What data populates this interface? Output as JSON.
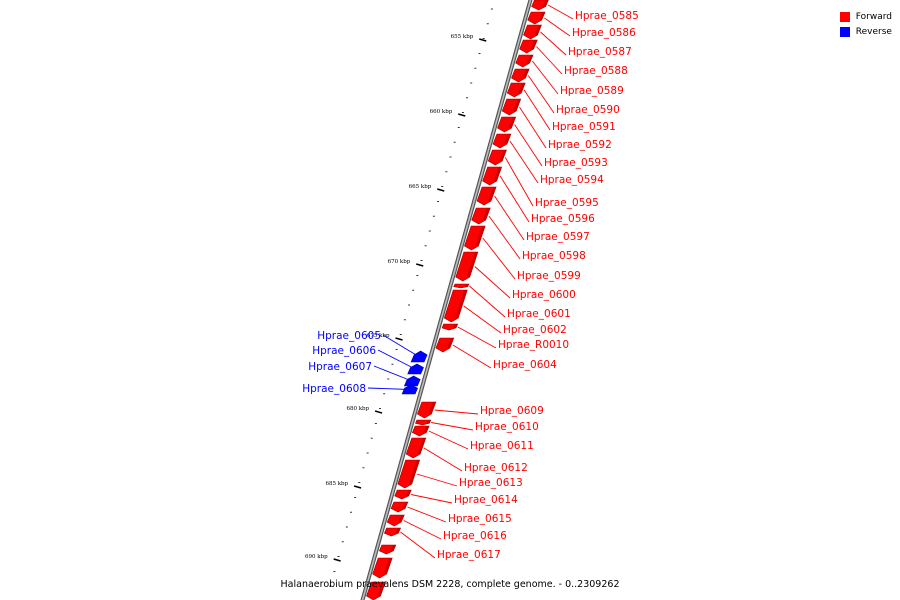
{
  "caption": "Halanaerobium praevalens DSM 2228, complete genome. - 0..2309262",
  "legend": {
    "forward_label": "Forward",
    "reverse_label": "Reverse",
    "forward_color": "#ff0000",
    "reverse_color": "#0000ff"
  },
  "ticks": [
    "655 kbp",
    "660 kbp",
    "665 kbp",
    "670 kbp",
    "675 kbp",
    "680 kbp",
    "685 kbp",
    "690 kbp"
  ],
  "genes": [
    {
      "label": "Hprae_0585",
      "strand": "forward"
    },
    {
      "label": "Hprae_0586",
      "strand": "forward"
    },
    {
      "label": "Hprae_0587",
      "strand": "forward"
    },
    {
      "label": "Hprae_0588",
      "strand": "forward"
    },
    {
      "label": "Hprae_0589",
      "strand": "forward"
    },
    {
      "label": "Hprae_0590",
      "strand": "forward"
    },
    {
      "label": "Hprae_0591",
      "strand": "forward"
    },
    {
      "label": "Hprae_0592",
      "strand": "forward"
    },
    {
      "label": "Hprae_0593",
      "strand": "forward"
    },
    {
      "label": "Hprae_0594",
      "strand": "forward"
    },
    {
      "label": "Hprae_0595",
      "strand": "forward"
    },
    {
      "label": "Hprae_0596",
      "strand": "forward"
    },
    {
      "label": "Hprae_0597",
      "strand": "forward"
    },
    {
      "label": "Hprae_0598",
      "strand": "forward"
    },
    {
      "label": "Hprae_0599",
      "strand": "forward"
    },
    {
      "label": "Hprae_0600",
      "strand": "forward"
    },
    {
      "label": "Hprae_0601",
      "strand": "forward"
    },
    {
      "label": "Hprae_0602",
      "strand": "forward"
    },
    {
      "label": "Hprae_R0010",
      "strand": "forward"
    },
    {
      "label": "Hprae_0604",
      "strand": "forward"
    },
    {
      "label": "Hprae_0605",
      "strand": "reverse"
    },
    {
      "label": "Hprae_0606",
      "strand": "reverse"
    },
    {
      "label": "Hprae_0607",
      "strand": "reverse"
    },
    {
      "label": "Hprae_0608",
      "strand": "reverse"
    },
    {
      "label": "Hprae_0609",
      "strand": "forward"
    },
    {
      "label": "Hprae_0610",
      "strand": "forward"
    },
    {
      "label": "Hprae_0611",
      "strand": "forward"
    },
    {
      "label": "Hprae_0612",
      "strand": "forward"
    },
    {
      "label": "Hprae_0613",
      "strand": "forward"
    },
    {
      "label": "Hprae_0614",
      "strand": "forward"
    },
    {
      "label": "Hprae_0615",
      "strand": "forward"
    },
    {
      "label": "Hprae_0616",
      "strand": "forward"
    },
    {
      "label": "Hprae_0617",
      "strand": "forward"
    }
  ]
}
